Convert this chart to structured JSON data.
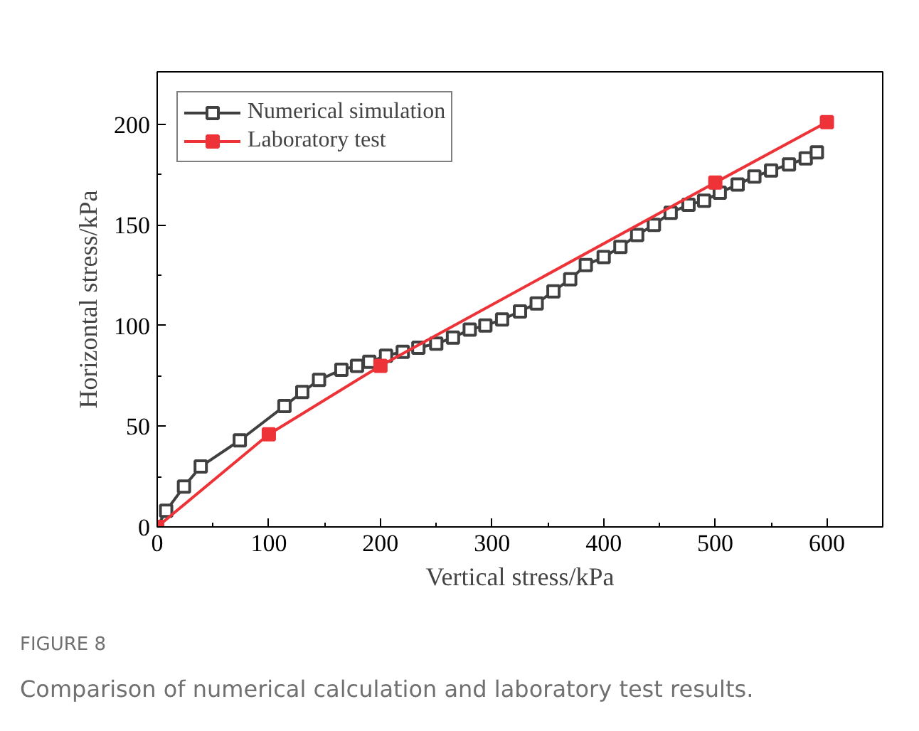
{
  "chart_data": {
    "type": "line",
    "xlabel": "Vertical stress/kPa",
    "ylabel": "Horizontal stress/kPa",
    "xlim": [
      0,
      650
    ],
    "ylim": [
      0,
      226
    ],
    "xticks": [
      0,
      100,
      200,
      300,
      400,
      500,
      600
    ],
    "yticks": [
      0,
      50,
      100,
      150,
      200
    ],
    "grid": false,
    "legend": "top left",
    "line_style": "solid",
    "series": [
      {
        "name": "Numerical simulation",
        "color": "#404040",
        "marker": "square",
        "x": [
          0,
          8,
          24,
          39,
          74,
          114,
          130,
          145,
          165,
          179,
          190,
          205,
          220,
          234,
          250,
          265,
          280,
          294,
          309,
          325,
          340,
          355,
          370,
          384,
          400,
          415,
          430,
          445,
          460,
          476,
          490,
          504,
          520,
          535,
          550,
          566,
          581,
          591
        ],
        "values": [
          0,
          8,
          20,
          30,
          43,
          60,
          67,
          73,
          78,
          80,
          82,
          85,
          87,
          89,
          91,
          94,
          98,
          100,
          103,
          107,
          111,
          117,
          123,
          130,
          134,
          139,
          145,
          150,
          156,
          160,
          162,
          166,
          170,
          174,
          177,
          180,
          183,
          186
        ]
      },
      {
        "name": "Laboratory test",
        "color": "#ee3338",
        "marker": "square",
        "x": [
          0,
          100,
          200,
          500,
          600
        ],
        "values": [
          0,
          46,
          80,
          171,
          201
        ]
      }
    ],
    "annotations": [
      "FIGURE 8",
      "Comparison of numerical calculation and laboratory test results."
    ]
  }
}
